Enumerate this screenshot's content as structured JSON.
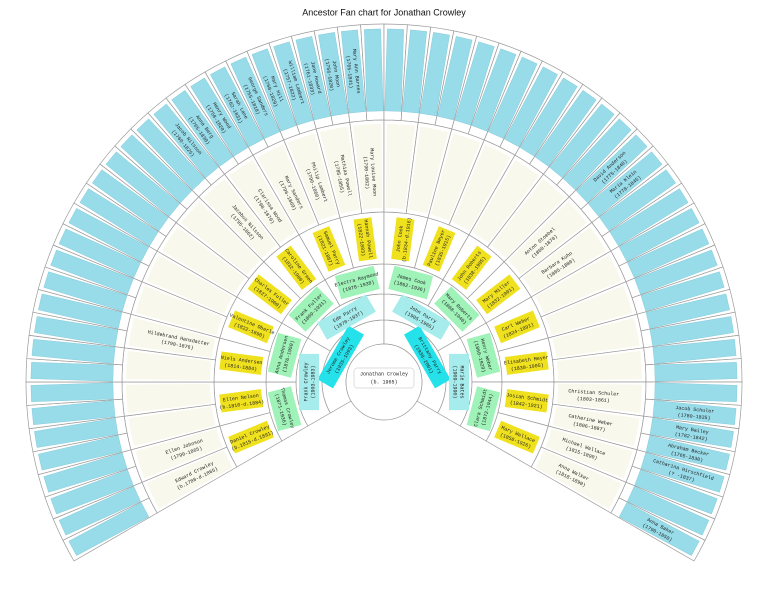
{
  "title": "Ancestor Fan chart for Jonathan Crowley",
  "root": {
    "name": "Jonathan Crowley",
    "dates": "(b. 1965)"
  },
  "generations": [
    [
      {
        "name": "Jerome Crowley",
        "dates": "(1935-1993)"
      },
      {
        "name": "Brittany Parry",
        "dates": "(1938-2001)"
      }
    ],
    [
      {
        "name": "Frank Crowley",
        "dates": "(1903-1983)"
      },
      {
        "name": "Ede Parry",
        "dates": "(1870-1937)"
      },
      {
        "name": "John Parry",
        "dates": "(1905-1965)"
      },
      {
        "name": "Marie Bates",
        "dates": "(1909-1990)"
      }
    ],
    [
      {
        "name": "Thomas Crowley",
        "dates": "(1871-1936)"
      },
      {
        "name": "Anna Andersen",
        "dates": "(1876-1950)"
      },
      {
        "name": "Frank Fuller",
        "dates": "(1869-1931)"
      },
      {
        "name": "Electra Raymond",
        "dates": "(1878-1938)"
      },
      {
        "name": "James Cook",
        "dates": "(1862-1936)"
      },
      {
        "name": "Mary Roberts",
        "dates": "(1868-1940)"
      },
      {
        "name": "Henry Weber",
        "dates": "(1860-1929)"
      },
      {
        "name": "Clara Schmidt",
        "dates": "(1872-1944)"
      }
    ],
    [
      {
        "name": "Daniel Crowley",
        "dates": "(b.1815-d.1891)"
      },
      {
        "name": "Ellen Nelson",
        "dates": "(b.1810-d.1884)"
      },
      {
        "name": "Niels Andersen",
        "dates": "(1814-1884)"
      },
      {
        "name": "Valentine Oberle",
        "dates": "(1822-1890)"
      },
      {
        "name": "Charles Fuller",
        "dates": "(1827-1900)"
      },
      {
        "name": "Caroline Green",
        "dates": "(1832-1900)"
      },
      {
        "name": "Samuel Parry",
        "dates": "(1821-1887)"
      },
      {
        "name": "Hannah Powell",
        "dates": "(1822-1883)"
      },
      {
        "name": "John Cook",
        "dates": "(b.1834-d.1916)"
      },
      {
        "name": "Pauline Beyer",
        "dates": "(1835-1915)"
      },
      {
        "name": "John Roberts",
        "dates": "(1838-1905)"
      },
      {
        "name": "Mary Miller",
        "dates": "(1832-1901)"
      },
      {
        "name": "Carl Weber",
        "dates": "(1824-1891)"
      },
      {
        "name": "Elisabeth Meyer",
        "dates": "(1830-1905)"
      },
      {
        "name": "Josiah Schmidt",
        "dates": "(1842-1921)"
      },
      {
        "name": "Mary Wallace",
        "dates": "(1850-1926)"
      }
    ],
    [
      {
        "name": "Edward Crowley",
        "dates": "(b.1788-d.1865)"
      },
      {
        "name": "Ellen Johnson",
        "dates": "(1790-1865)"
      },
      null,
      null,
      null,
      {
        "name": "Hildebrand Hansdatter",
        "dates": "(1790-1876)"
      },
      null,
      null,
      null,
      null,
      {
        "name": "Jacobus Nilsson",
        "dates": "(1795-1862)"
      },
      {
        "name": "Clarissa Wood",
        "dates": "(1798-1870)"
      },
      {
        "name": "Mary Sanders",
        "dates": "(1796-1869)"
      },
      {
        "name": "Philip Lambert",
        "dates": "(1790-1860)"
      },
      {
        "name": "Mathias Powell",
        "dates": "(1785-1855)"
      },
      {
        "name": "Mary Louise Moon",
        "dates": "(1790-1862)"
      },
      null,
      null,
      null,
      null,
      null,
      null,
      {
        "name": "Anton Stoebel",
        "dates": "(1800-1870)"
      },
      {
        "name": "Barbara Kuhn",
        "dates": "(1805-1880)"
      },
      null,
      null,
      null,
      null,
      {
        "name": "Christian Schuler",
        "dates": "(1803-1861)"
      },
      {
        "name": "Catherine Weber",
        "dates": "(1806-1887)"
      },
      {
        "name": "Michael Wallace",
        "dates": "(1815-1890)"
      },
      {
        "name": "Anna Walker",
        "dates": "(1818-1890)"
      }
    ],
    [
      null,
      null,
      null,
      null,
      null,
      null,
      null,
      null,
      null,
      null,
      null,
      null,
      null,
      null,
      null,
      null,
      null,
      null,
      null,
      null,
      null,
      {
        "name": "Jacob Nilsson",
        "dates": "(1760-1825)"
      },
      {
        "name": "Anna Berg",
        "dates": "(1765-1830)"
      },
      {
        "name": "Henry Wood",
        "dates": "(1758-1820)"
      },
      {
        "name": "Sarah Lane",
        "dates": "(1762-1831)"
      },
      {
        "name": "George Sanders",
        "dates": "(1755-1818)"
      },
      {
        "name": "Mary Hill",
        "dates": "(1760-1829)"
      },
      {
        "name": "William Lambert",
        "dates": "(1757-1822)"
      },
      {
        "name": "Jane Howard",
        "dates": "(1761-1833)"
      },
      {
        "name": "John Moon",
        "dates": "(1756-1820)"
      },
      {
        "name": "Mary Ann Barnes",
        "dates": "(1765-1841)"
      },
      null,
      null,
      null,
      null,
      null,
      null,
      null,
      null,
      null,
      null,
      null,
      null,
      null,
      {
        "name": "David Anderson",
        "dates": "(1775-1840)"
      },
      {
        "name": "Maria Klein",
        "dates": "(1778-1845)"
      },
      null,
      null,
      null,
      null,
      null,
      null,
      null,
      null,
      null,
      null,
      null,
      {
        "name": "Jacob Schuler",
        "dates": "(1780-1835)"
      },
      {
        "name": "Mary Bailey",
        "dates": "(1782-1842)"
      },
      {
        "name": "Abraham Becker",
        "dates": "(1765-1830)"
      },
      {
        "name": "Catharina Hirschfield",
        "dates": "(? -1837)"
      },
      null,
      null,
      {
        "name": "Anna Baker",
        "dates": "(1790-1850)"
      }
    ]
  ]
}
